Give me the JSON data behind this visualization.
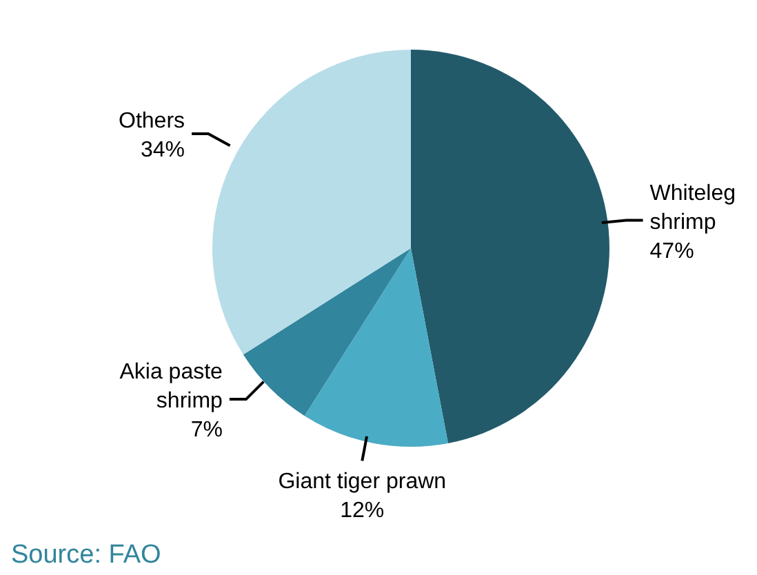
{
  "chart_data": {
    "type": "pie",
    "categories": [
      "Whiteleg shrimp",
      "Giant tiger prawn",
      "Akia paste shrimp",
      "Others"
    ],
    "values": [
      47,
      12,
      7,
      34
    ],
    "colors": [
      "#225a6a",
      "#4bacc6",
      "#31859c",
      "#b7dde8"
    ],
    "value_labels": [
      "47%",
      "12%",
      "7%",
      "34%"
    ],
    "annotations": [
      "Source: FAO"
    ]
  }
}
